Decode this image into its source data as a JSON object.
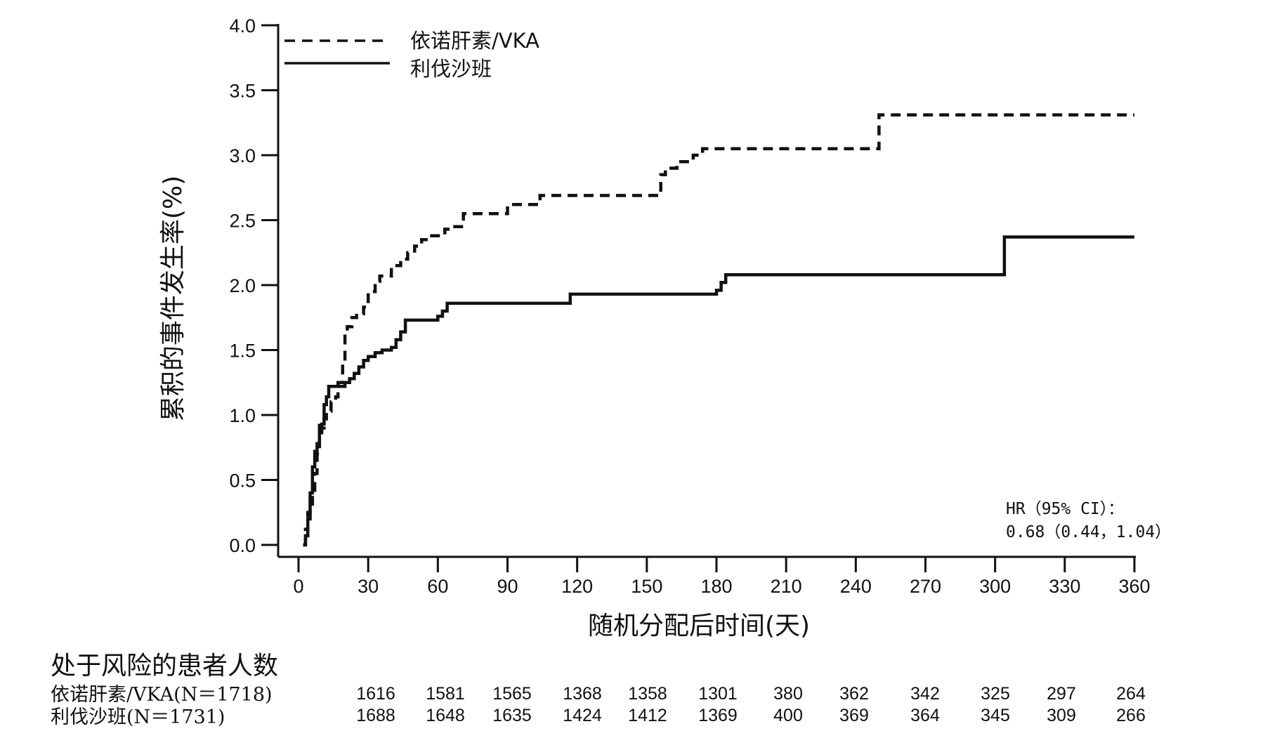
{
  "chart_data": {
    "type": "line",
    "step": true,
    "xlabel": "随机分配后时间(天)",
    "ylabel": "累积的事件发生率(%)",
    "xlim": [
      0,
      360
    ],
    "ylim": [
      0,
      4.0
    ],
    "xticks": [
      0,
      30,
      60,
      90,
      120,
      150,
      180,
      210,
      240,
      270,
      300,
      330,
      360
    ],
    "yticks": [
      0.0,
      0.5,
      1.0,
      1.5,
      2.0,
      2.5,
      3.0,
      3.5,
      4.0
    ],
    "ytick_labels": [
      "0.0",
      "0.5",
      "1.0",
      "1.5",
      "2.0",
      "2.5",
      "3.0",
      "3.5",
      "4.0"
    ],
    "grid": false,
    "legend_position": "top-left",
    "series": [
      {
        "name": "依诺肝素/VKA",
        "line_style": "dashed",
        "color": "#111111",
        "x": [
          2,
          3,
          4,
          5,
          6,
          7,
          8,
          9,
          10,
          11,
          12,
          14,
          16,
          17,
          19,
          20,
          21,
          23,
          25,
          28,
          30,
          33,
          35,
          38,
          40,
          44,
          47,
          50,
          53,
          56,
          60,
          63,
          66,
          71,
          80,
          90,
          100,
          104,
          120,
          140,
          154,
          156,
          158,
          163,
          170,
          174,
          180,
          200,
          220,
          240,
          250,
          300,
          360
        ],
        "y": [
          0.0,
          0.12,
          0.25,
          0.3,
          0.4,
          0.55,
          0.7,
          0.82,
          0.9,
          0.97,
          1.03,
          1.1,
          1.14,
          1.25,
          1.4,
          1.62,
          1.68,
          1.75,
          1.78,
          1.83,
          1.95,
          2.03,
          2.07,
          2.07,
          2.15,
          2.2,
          2.25,
          2.3,
          2.35,
          2.38,
          2.38,
          2.43,
          2.45,
          2.55,
          2.55,
          2.62,
          2.62,
          2.69,
          2.69,
          2.69,
          2.69,
          2.85,
          2.9,
          2.95,
          3.0,
          3.05,
          3.05,
          3.05,
          3.05,
          3.05,
          3.31,
          3.31,
          3.31
        ]
      },
      {
        "name": "利伐沙班",
        "line_style": "solid",
        "color": "#111111",
        "x": [
          2,
          3,
          4,
          5,
          6,
          7,
          8,
          9,
          10,
          11,
          12,
          13,
          15,
          18,
          20,
          22,
          24,
          26,
          28,
          30,
          33,
          36,
          40,
          42,
          44,
          46,
          50,
          55,
          60,
          62,
          64,
          70,
          90,
          110,
          117,
          130,
          150,
          170,
          180,
          182,
          184,
          190,
          220,
          250,
          280,
          304,
          330,
          360
        ],
        "y": [
          0.0,
          0.07,
          0.2,
          0.4,
          0.6,
          0.72,
          0.78,
          0.92,
          0.93,
          1.08,
          1.14,
          1.22,
          1.22,
          1.22,
          1.25,
          1.28,
          1.32,
          1.37,
          1.42,
          1.45,
          1.48,
          1.5,
          1.52,
          1.58,
          1.64,
          1.73,
          1.73,
          1.73,
          1.76,
          1.8,
          1.86,
          1.86,
          1.86,
          1.86,
          1.93,
          1.93,
          1.93,
          1.93,
          1.96,
          2.02,
          2.08,
          2.08,
          2.08,
          2.08,
          2.08,
          2.37,
          2.37,
          2.37
        ]
      }
    ],
    "annotation": {
      "line1": "HR（95% CI）：",
      "line2": "0.68（0.44，1.04）"
    },
    "risk_table": {
      "title": "处于风险的患者人数",
      "rows": [
        {
          "label": "依诺肝素/VKA(N＝1718)",
          "values": [
            1616,
            1581,
            1565,
            1368,
            1358,
            1301,
            380,
            362,
            342,
            325,
            297,
            264
          ]
        },
        {
          "label": "利伐沙班(N＝1731)",
          "values": [
            1688,
            1648,
            1635,
            1424,
            1412,
            1369,
            400,
            369,
            364,
            345,
            309,
            266
          ]
        }
      ]
    }
  }
}
